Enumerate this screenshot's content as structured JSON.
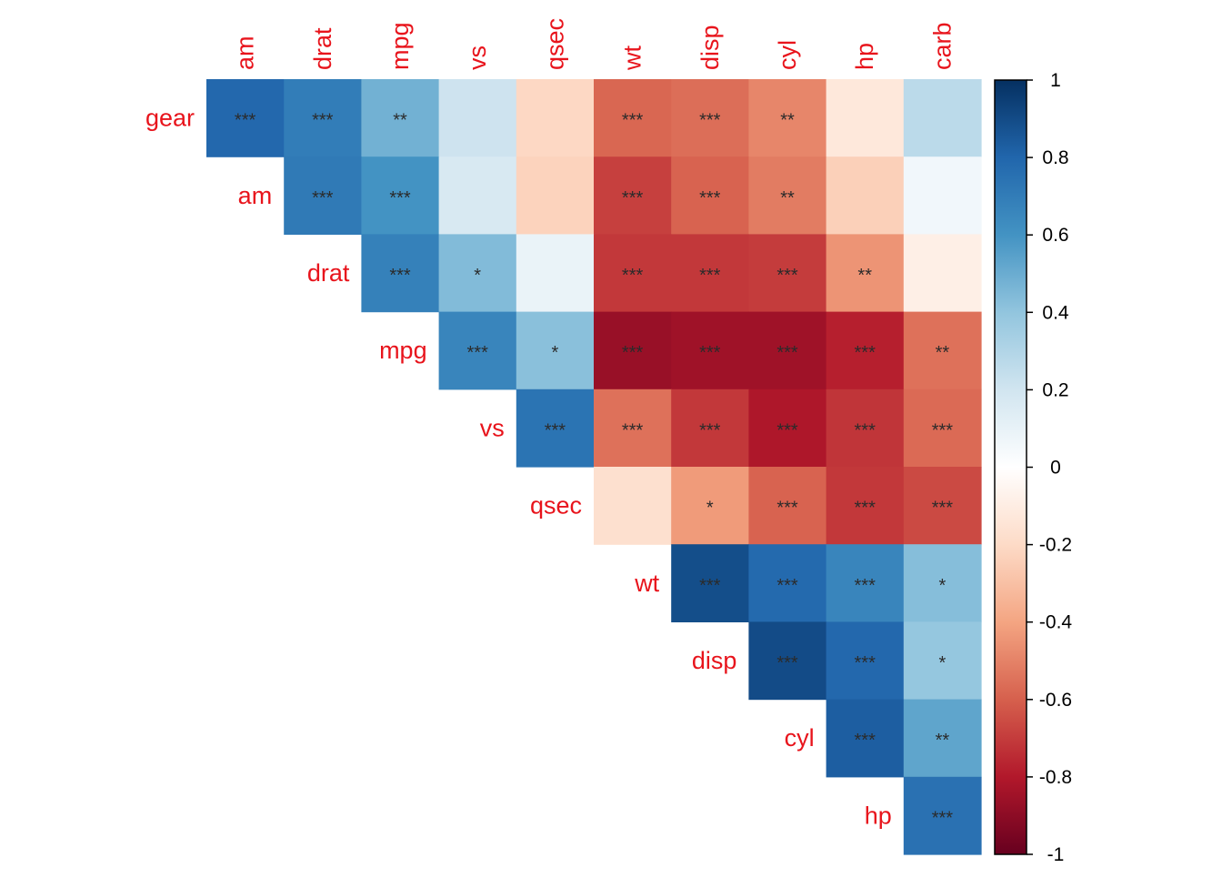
{
  "colors": {
    "label": "#e8141c",
    "sig_text": "#2b2b2b",
    "palette_neg_to_pos": [
      "#67001f",
      "#b2182b",
      "#d6604d",
      "#f4a582",
      "#fddbc7",
      "#ffffff",
      "#d1e5f0",
      "#92c5de",
      "#4393c3",
      "#2166ac",
      "#053061"
    ]
  },
  "chart_data": {
    "type": "heatmap",
    "variant": "upper-triangle correlation matrix",
    "title": "",
    "xlabel": "",
    "ylabel": "",
    "row_labels": [
      "gear",
      "am",
      "drat",
      "mpg",
      "vs",
      "qsec",
      "wt",
      "disp",
      "cyl",
      "hp"
    ],
    "column_labels": [
      "am",
      "drat",
      "mpg",
      "vs",
      "qsec",
      "wt",
      "disp",
      "cyl",
      "hp",
      "carb"
    ],
    "cells": [
      {
        "row": "gear",
        "col": "am",
        "value": 0.79,
        "sig": "***"
      },
      {
        "row": "gear",
        "col": "drat",
        "value": 0.7,
        "sig": "***"
      },
      {
        "row": "gear",
        "col": "mpg",
        "value": 0.48,
        "sig": "**"
      },
      {
        "row": "gear",
        "col": "vs",
        "value": 0.21,
        "sig": ""
      },
      {
        "row": "gear",
        "col": "qsec",
        "value": -0.21,
        "sig": ""
      },
      {
        "row": "gear",
        "col": "wt",
        "value": -0.58,
        "sig": "***"
      },
      {
        "row": "gear",
        "col": "disp",
        "value": -0.56,
        "sig": "***"
      },
      {
        "row": "gear",
        "col": "cyl",
        "value": -0.49,
        "sig": "**"
      },
      {
        "row": "gear",
        "col": "hp",
        "value": -0.13,
        "sig": ""
      },
      {
        "row": "gear",
        "col": "carb",
        "value": 0.27,
        "sig": ""
      },
      {
        "row": "am",
        "col": "drat",
        "value": 0.71,
        "sig": "***"
      },
      {
        "row": "am",
        "col": "mpg",
        "value": 0.6,
        "sig": "***"
      },
      {
        "row": "am",
        "col": "vs",
        "value": 0.17,
        "sig": ""
      },
      {
        "row": "am",
        "col": "qsec",
        "value": -0.23,
        "sig": ""
      },
      {
        "row": "am",
        "col": "wt",
        "value": -0.69,
        "sig": "***"
      },
      {
        "row": "am",
        "col": "disp",
        "value": -0.59,
        "sig": "***"
      },
      {
        "row": "am",
        "col": "cyl",
        "value": -0.52,
        "sig": "**"
      },
      {
        "row": "am",
        "col": "hp",
        "value": -0.24,
        "sig": ""
      },
      {
        "row": "am",
        "col": "carb",
        "value": 0.06,
        "sig": ""
      },
      {
        "row": "drat",
        "col": "mpg",
        "value": 0.68,
        "sig": "***"
      },
      {
        "row": "drat",
        "col": "vs",
        "value": 0.44,
        "sig": "*"
      },
      {
        "row": "drat",
        "col": "qsec",
        "value": 0.09,
        "sig": ""
      },
      {
        "row": "drat",
        "col": "wt",
        "value": -0.71,
        "sig": "***"
      },
      {
        "row": "drat",
        "col": "disp",
        "value": -0.71,
        "sig": "***"
      },
      {
        "row": "drat",
        "col": "cyl",
        "value": -0.7,
        "sig": "***"
      },
      {
        "row": "drat",
        "col": "hp",
        "value": -0.45,
        "sig": "**"
      },
      {
        "row": "drat",
        "col": "carb",
        "value": -0.09,
        "sig": ""
      },
      {
        "row": "mpg",
        "col": "vs",
        "value": 0.66,
        "sig": "***"
      },
      {
        "row": "mpg",
        "col": "qsec",
        "value": 0.42,
        "sig": "*"
      },
      {
        "row": "mpg",
        "col": "wt",
        "value": -0.87,
        "sig": "***"
      },
      {
        "row": "mpg",
        "col": "disp",
        "value": -0.85,
        "sig": "***"
      },
      {
        "row": "mpg",
        "col": "cyl",
        "value": -0.85,
        "sig": "***"
      },
      {
        "row": "mpg",
        "col": "hp",
        "value": -0.78,
        "sig": "***"
      },
      {
        "row": "mpg",
        "col": "carb",
        "value": -0.55,
        "sig": "**"
      },
      {
        "row": "vs",
        "col": "qsec",
        "value": 0.74,
        "sig": "***"
      },
      {
        "row": "vs",
        "col": "wt",
        "value": -0.55,
        "sig": "***"
      },
      {
        "row": "vs",
        "col": "disp",
        "value": -0.71,
        "sig": "***"
      },
      {
        "row": "vs",
        "col": "cyl",
        "value": -0.81,
        "sig": "***"
      },
      {
        "row": "vs",
        "col": "hp",
        "value": -0.72,
        "sig": "***"
      },
      {
        "row": "vs",
        "col": "carb",
        "value": -0.57,
        "sig": "***"
      },
      {
        "row": "qsec",
        "col": "wt",
        "value": -0.17,
        "sig": ""
      },
      {
        "row": "qsec",
        "col": "disp",
        "value": -0.43,
        "sig": "*"
      },
      {
        "row": "qsec",
        "col": "cyl",
        "value": -0.59,
        "sig": "***"
      },
      {
        "row": "qsec",
        "col": "hp",
        "value": -0.71,
        "sig": "***"
      },
      {
        "row": "qsec",
        "col": "carb",
        "value": -0.66,
        "sig": "***"
      },
      {
        "row": "wt",
        "col": "disp",
        "value": 0.89,
        "sig": "***"
      },
      {
        "row": "wt",
        "col": "cyl",
        "value": 0.78,
        "sig": "***"
      },
      {
        "row": "wt",
        "col": "hp",
        "value": 0.66,
        "sig": "***"
      },
      {
        "row": "wt",
        "col": "carb",
        "value": 0.43,
        "sig": "*"
      },
      {
        "row": "disp",
        "col": "cyl",
        "value": 0.9,
        "sig": "***"
      },
      {
        "row": "disp",
        "col": "hp",
        "value": 0.79,
        "sig": "***"
      },
      {
        "row": "disp",
        "col": "carb",
        "value": 0.39,
        "sig": "*"
      },
      {
        "row": "cyl",
        "col": "hp",
        "value": 0.83,
        "sig": "***"
      },
      {
        "row": "cyl",
        "col": "carb",
        "value": 0.53,
        "sig": "**"
      },
      {
        "row": "hp",
        "col": "carb",
        "value": 0.75,
        "sig": "***"
      }
    ],
    "colorbar": {
      "range": [
        -1,
        1
      ],
      "ticks": [
        1,
        0.8,
        0.6,
        0.4,
        0.2,
        0,
        -0.2,
        -0.4,
        -0.6,
        -0.8,
        -1
      ],
      "tick_labels": [
        "1",
        "0.8",
        "0.6",
        "0.4",
        "0.2",
        "0",
        "-0.2",
        "-0.4",
        "-0.6",
        "-0.8",
        "-1"
      ],
      "placement": "right"
    },
    "grid": false,
    "legend": "colorbar-right"
  }
}
